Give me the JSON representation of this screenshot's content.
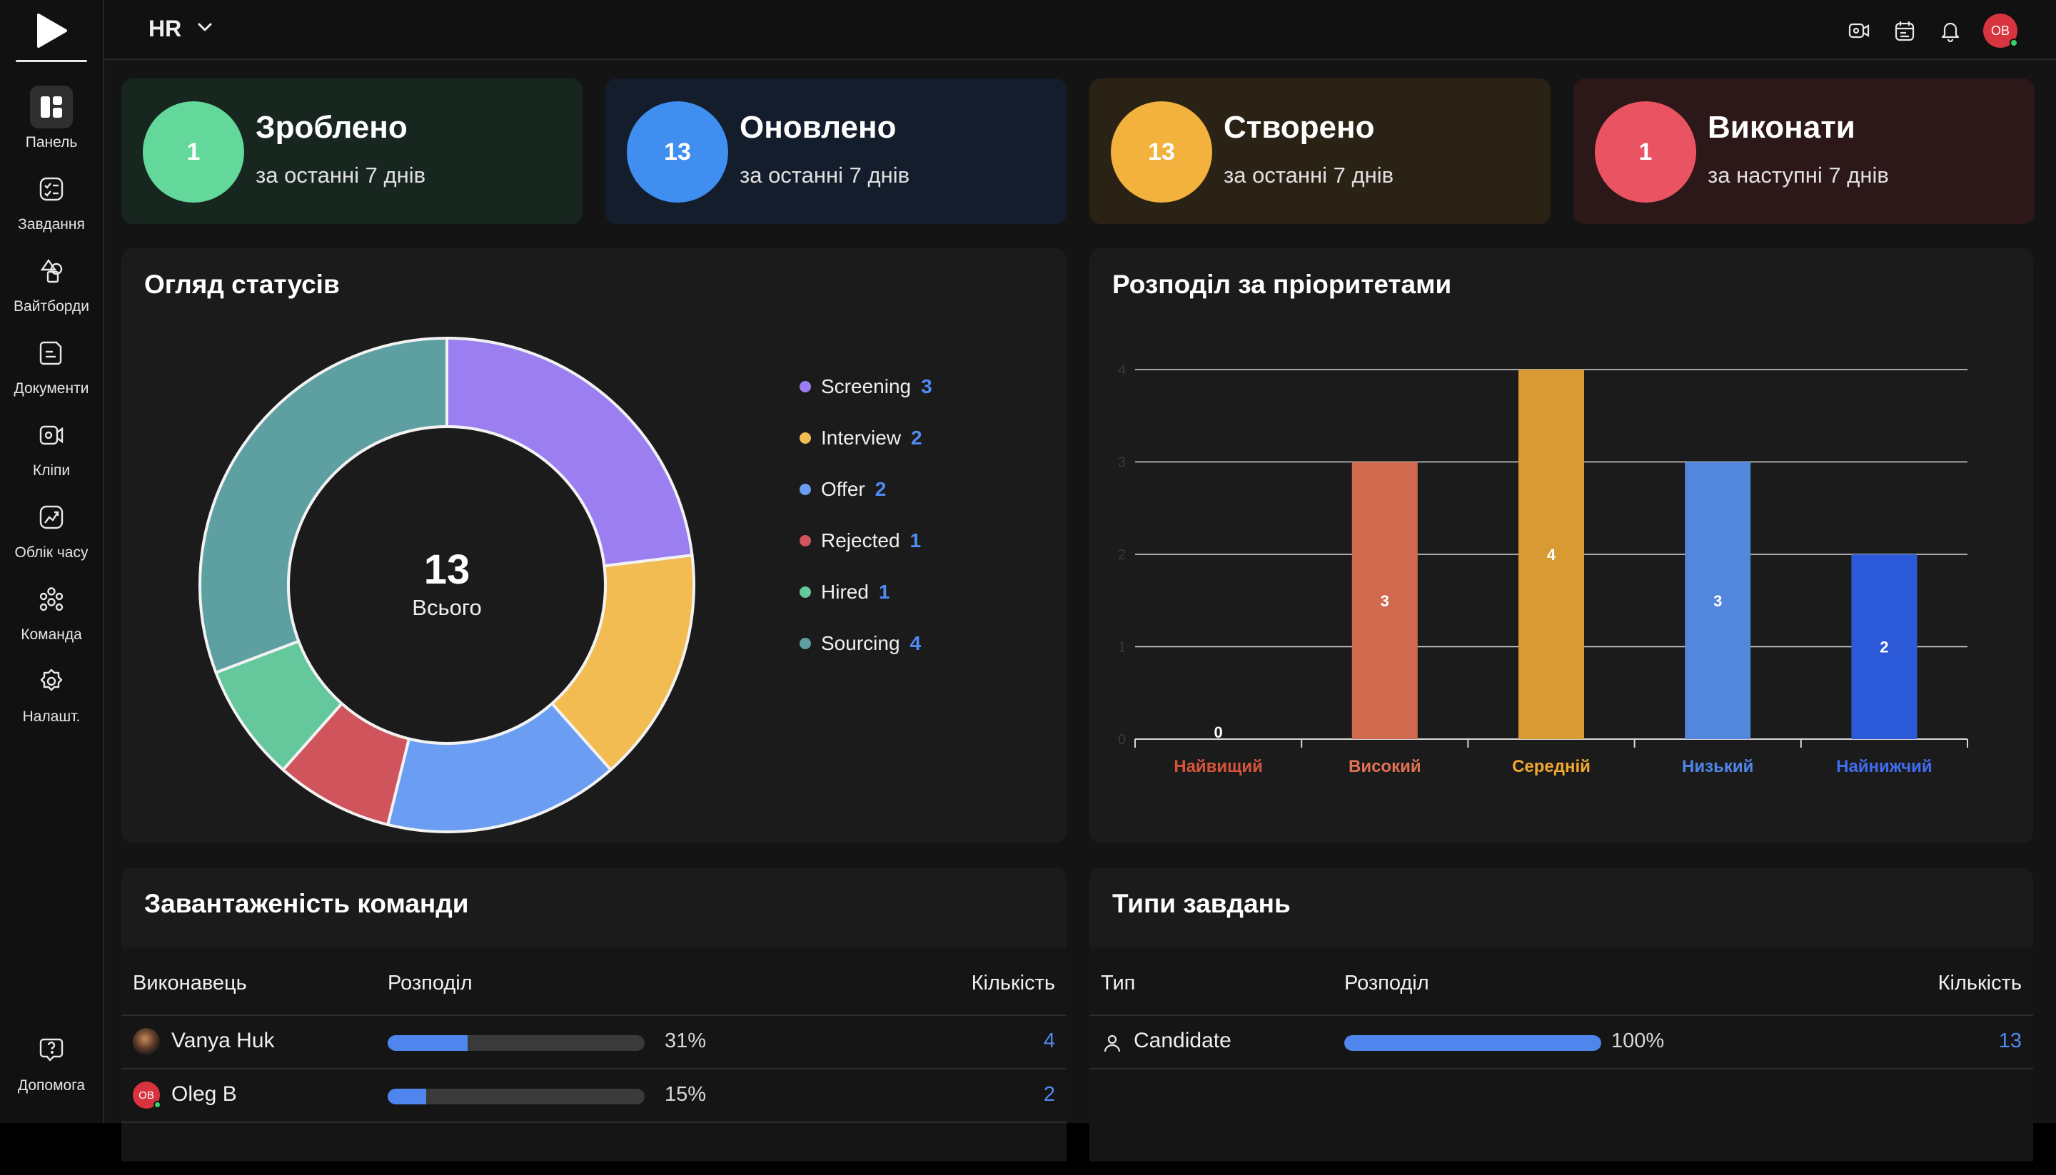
{
  "workspace": {
    "name": "HR"
  },
  "sidebar": {
    "items": [
      {
        "label": "Панель",
        "icon": "dashboard-icon",
        "active": true
      },
      {
        "label": "Завдання",
        "icon": "tasks-icon"
      },
      {
        "label": "Вайтборди",
        "icon": "whiteboard-icon"
      },
      {
        "label": "Документи",
        "icon": "document-icon"
      },
      {
        "label": "Кліпи",
        "icon": "clip-icon"
      },
      {
        "label": "Облік часу",
        "icon": "time-tracking-icon"
      },
      {
        "label": "Команда",
        "icon": "team-icon"
      },
      {
        "label": "Налашт.",
        "icon": "settings-icon"
      }
    ],
    "help": {
      "label": "Допомога",
      "icon": "help-icon"
    }
  },
  "topbar": {
    "icons": [
      "clip-record-icon",
      "calendar-icon",
      "bell-icon"
    ],
    "user_initials": "OB"
  },
  "stats": [
    {
      "value": "1",
      "title": "Зроблено",
      "subtitle": "за останні 7 днів",
      "color": "#63d89a",
      "bg": "#182620"
    },
    {
      "value": "13",
      "title": "Оновлено",
      "subtitle": "за останні 7 днів",
      "color": "#3f8ef0",
      "bg": "#141d2c"
    },
    {
      "value": "13",
      "title": "Створено",
      "subtitle": "за останні 7 днів",
      "color": "#f2b23d",
      "bg": "#2b2216"
    },
    {
      "value": "1",
      "title": "Виконати",
      "subtitle": "за наступні 7 днів",
      "color": "#ea5462",
      "bg": "#2c1719"
    }
  ],
  "status_panel": {
    "title": "Огляд статусів",
    "total": "13",
    "total_label": "Всього"
  },
  "priority_panel": {
    "title": "Розподіл за пріоритетами"
  },
  "chart_data": [
    {
      "type": "pie",
      "title": "Огляд статусів",
      "categories": [
        "Screening",
        "Interview",
        "Offer",
        "Rejected",
        "Hired",
        "Sourcing"
      ],
      "values": [
        3,
        2,
        2,
        1,
        1,
        4
      ],
      "colors": [
        "#9b7ff0",
        "#f2bc52",
        "#6b9ef2",
        "#cf545c",
        "#65c79c",
        "#5e9fa1"
      ],
      "legend": "right"
    },
    {
      "type": "bar",
      "title": "Розподіл за пріоритетами",
      "categories": [
        "Найвищий",
        "Високий",
        "Середній",
        "Низький",
        "Найнижчий"
      ],
      "values": [
        0,
        3,
        4,
        3,
        2
      ],
      "colors": [
        "#d8543a",
        "#d06a4f",
        "#d89a32",
        "#5287dc",
        "#2c59d8"
      ],
      "label_colors": [
        "#d8543a",
        "#e07055",
        "#f0a832",
        "#4f86e8",
        "#3f6df0"
      ],
      "ylim": [
        0,
        4
      ],
      "yticks": [
        0,
        1,
        2,
        3,
        4
      ],
      "grid": true
    }
  ],
  "team_panel": {
    "title": "Завантаженість команди",
    "columns": [
      "Виконавець",
      "Розподіл",
      "Кількість"
    ],
    "rows": [
      {
        "name": "Vanya Huk",
        "percent": 31,
        "percent_label": "31%",
        "count": "4",
        "avatar": "photo"
      },
      {
        "name": "Oleg B",
        "percent": 15,
        "percent_label": "15%",
        "count": "2",
        "avatar": "initials",
        "initials": "OB"
      }
    ]
  },
  "types_panel": {
    "title": "Типи завдань",
    "columns": [
      "Тип",
      "Розподіл",
      "Кількість"
    ],
    "rows": [
      {
        "name": "Candidate",
        "percent": 100,
        "percent_label": "100%",
        "count": "13"
      }
    ]
  }
}
